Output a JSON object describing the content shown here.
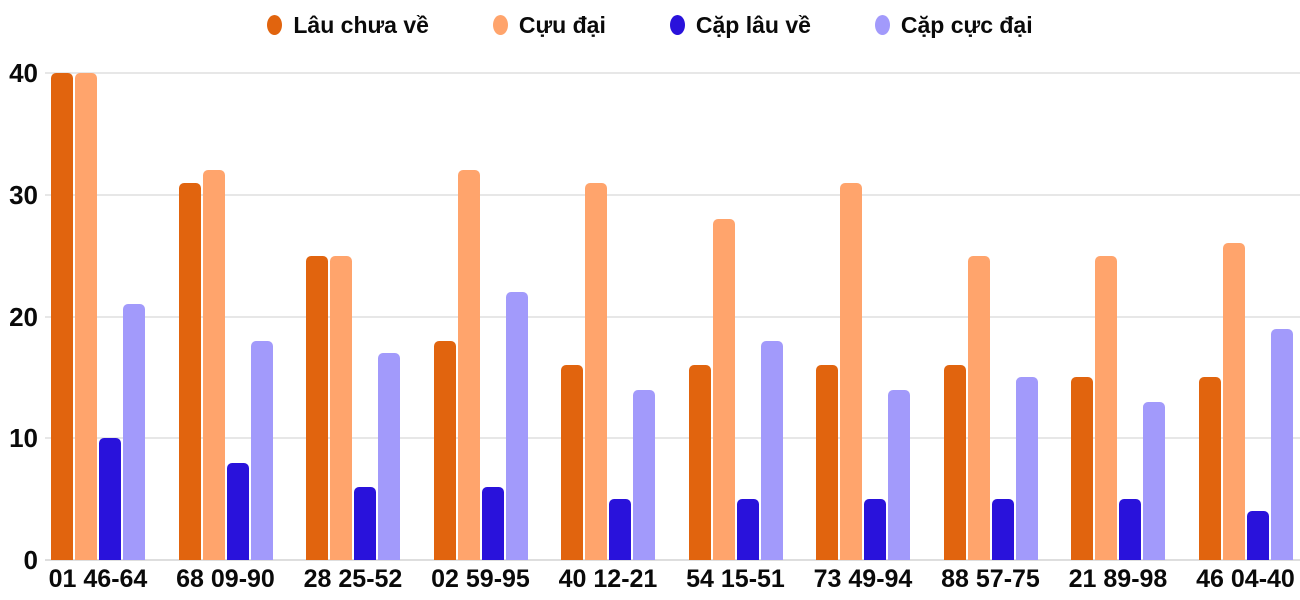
{
  "chart_data": {
    "type": "bar",
    "categories": [
      "01 46-64",
      "68 09-90",
      "28 25-52",
      "02 59-95",
      "40 12-21",
      "54 15-51",
      "73 49-94",
      "88 57-75",
      "21 89-98",
      "46 04-40"
    ],
    "series": [
      {
        "name": "Lâu chưa về",
        "color": "#E1640E",
        "values": [
          40,
          31,
          25,
          18,
          16,
          16,
          16,
          16,
          15,
          15
        ]
      },
      {
        "name": "Cựu đại",
        "color": "#FFA46C",
        "values": [
          40,
          32,
          25,
          32,
          31,
          28,
          31,
          25,
          25,
          26
        ]
      },
      {
        "name": "Cặp lâu về",
        "color": "#2912DB",
        "values": [
          10,
          8,
          6,
          6,
          5,
          5,
          5,
          5,
          5,
          4
        ]
      },
      {
        "name": "Cặp cực đại",
        "color": "#A29AFB",
        "values": [
          21,
          18,
          17,
          22,
          14,
          18,
          14,
          15,
          13,
          19
        ]
      }
    ],
    "yticks": [
      0,
      10,
      20,
      30,
      40
    ],
    "ylim": [
      0,
      40
    ],
    "grid": true,
    "legend_position": "top"
  },
  "colors": {
    "background": "#FFFFFF",
    "gridline": "#E7E7E7",
    "baseline": "#DEDEDE",
    "label_text": "#0A0A0A"
  }
}
